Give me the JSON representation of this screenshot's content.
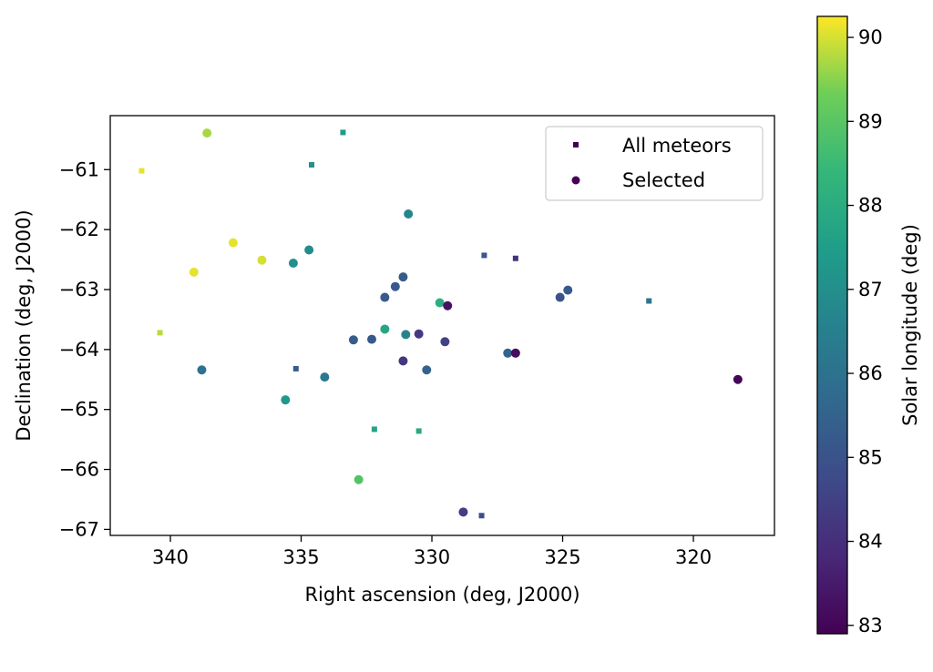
{
  "chart_data": {
    "type": "scatter",
    "xlabel": "Right ascension (deg, J2000)",
    "ylabel": "Declination (deg, J2000)",
    "xlim": [
      342.3,
      316.9
    ],
    "ylim": [
      -67.1,
      -60.1
    ],
    "x_ticks": [
      340,
      335,
      330,
      325,
      320
    ],
    "y_ticks": [
      -61,
      -62,
      -63,
      -64,
      -65,
      -66,
      -67
    ],
    "x_axis_inverted": true,
    "grid": false,
    "legend_position": "top-right",
    "legend": [
      {
        "label": "All meteors",
        "marker": "square"
      },
      {
        "label": "Selected",
        "marker": "circle"
      }
    ],
    "colorbar": {
      "label": "Solar longitude (deg)",
      "range": [
        82.9,
        90.25
      ],
      "ticks": [
        83,
        84,
        85,
        86,
        87,
        88,
        89,
        90
      ],
      "colormap": "viridis"
    },
    "series": [
      {
        "name": "All meteors",
        "marker": "square",
        "points": [
          {
            "x": 341.1,
            "y": -61.02,
            "c": 90.1
          },
          {
            "x": 340.4,
            "y": -63.72,
            "c": 89.8
          },
          {
            "x": 334.6,
            "y": -60.92,
            "c": 87.1
          },
          {
            "x": 333.4,
            "y": -60.38,
            "c": 87.4
          },
          {
            "x": 335.2,
            "y": -64.32,
            "c": 85.3
          },
          {
            "x": 332.2,
            "y": -65.33,
            "c": 87.7
          },
          {
            "x": 330.5,
            "y": -65.36,
            "c": 87.9
          },
          {
            "x": 328.0,
            "y": -62.43,
            "c": 85.2
          },
          {
            "x": 326.8,
            "y": -62.48,
            "c": 84.1
          },
          {
            "x": 321.7,
            "y": -63.19,
            "c": 86.1
          },
          {
            "x": 328.1,
            "y": -66.77,
            "c": 84.9
          }
        ]
      },
      {
        "name": "Selected",
        "marker": "circle",
        "points": [
          {
            "x": 338.6,
            "y": -60.39,
            "c": 89.7
          },
          {
            "x": 337.6,
            "y": -62.22,
            "c": 90.1
          },
          {
            "x": 336.5,
            "y": -62.51,
            "c": 90.0
          },
          {
            "x": 339.1,
            "y": -62.71,
            "c": 90.1
          },
          {
            "x": 335.3,
            "y": -62.56,
            "c": 87.0
          },
          {
            "x": 334.7,
            "y": -62.34,
            "c": 86.9
          },
          {
            "x": 330.9,
            "y": -61.74,
            "c": 86.7
          },
          {
            "x": 331.1,
            "y": -62.79,
            "c": 85.3
          },
          {
            "x": 331.4,
            "y": -62.95,
            "c": 85.2
          },
          {
            "x": 331.8,
            "y": -63.13,
            "c": 85.2
          },
          {
            "x": 329.7,
            "y": -63.22,
            "c": 88.1
          },
          {
            "x": 329.4,
            "y": -63.27,
            "c": 83.3
          },
          {
            "x": 325.1,
            "y": -63.13,
            "c": 85.0
          },
          {
            "x": 324.8,
            "y": -63.01,
            "c": 85.2
          },
          {
            "x": 331.8,
            "y": -63.66,
            "c": 87.8
          },
          {
            "x": 331.0,
            "y": -63.75,
            "c": 86.6
          },
          {
            "x": 330.5,
            "y": -63.74,
            "c": 84.3
          },
          {
            "x": 333.0,
            "y": -63.84,
            "c": 85.3
          },
          {
            "x": 332.3,
            "y": -63.83,
            "c": 85.2
          },
          {
            "x": 329.5,
            "y": -63.87,
            "c": 84.5
          },
          {
            "x": 327.1,
            "y": -64.06,
            "c": 85.5
          },
          {
            "x": 326.8,
            "y": -64.06,
            "c": 83.2
          },
          {
            "x": 331.1,
            "y": -64.19,
            "c": 84.2
          },
          {
            "x": 330.2,
            "y": -64.34,
            "c": 85.5
          },
          {
            "x": 338.8,
            "y": -64.34,
            "c": 86.0
          },
          {
            "x": 334.1,
            "y": -64.46,
            "c": 86.2
          },
          {
            "x": 318.3,
            "y": -64.5,
            "c": 83.0
          },
          {
            "x": 335.6,
            "y": -64.84,
            "c": 87.3
          },
          {
            "x": 332.8,
            "y": -66.17,
            "c": 88.9
          },
          {
            "x": 328.8,
            "y": -66.71,
            "c": 84.4
          }
        ]
      }
    ]
  }
}
